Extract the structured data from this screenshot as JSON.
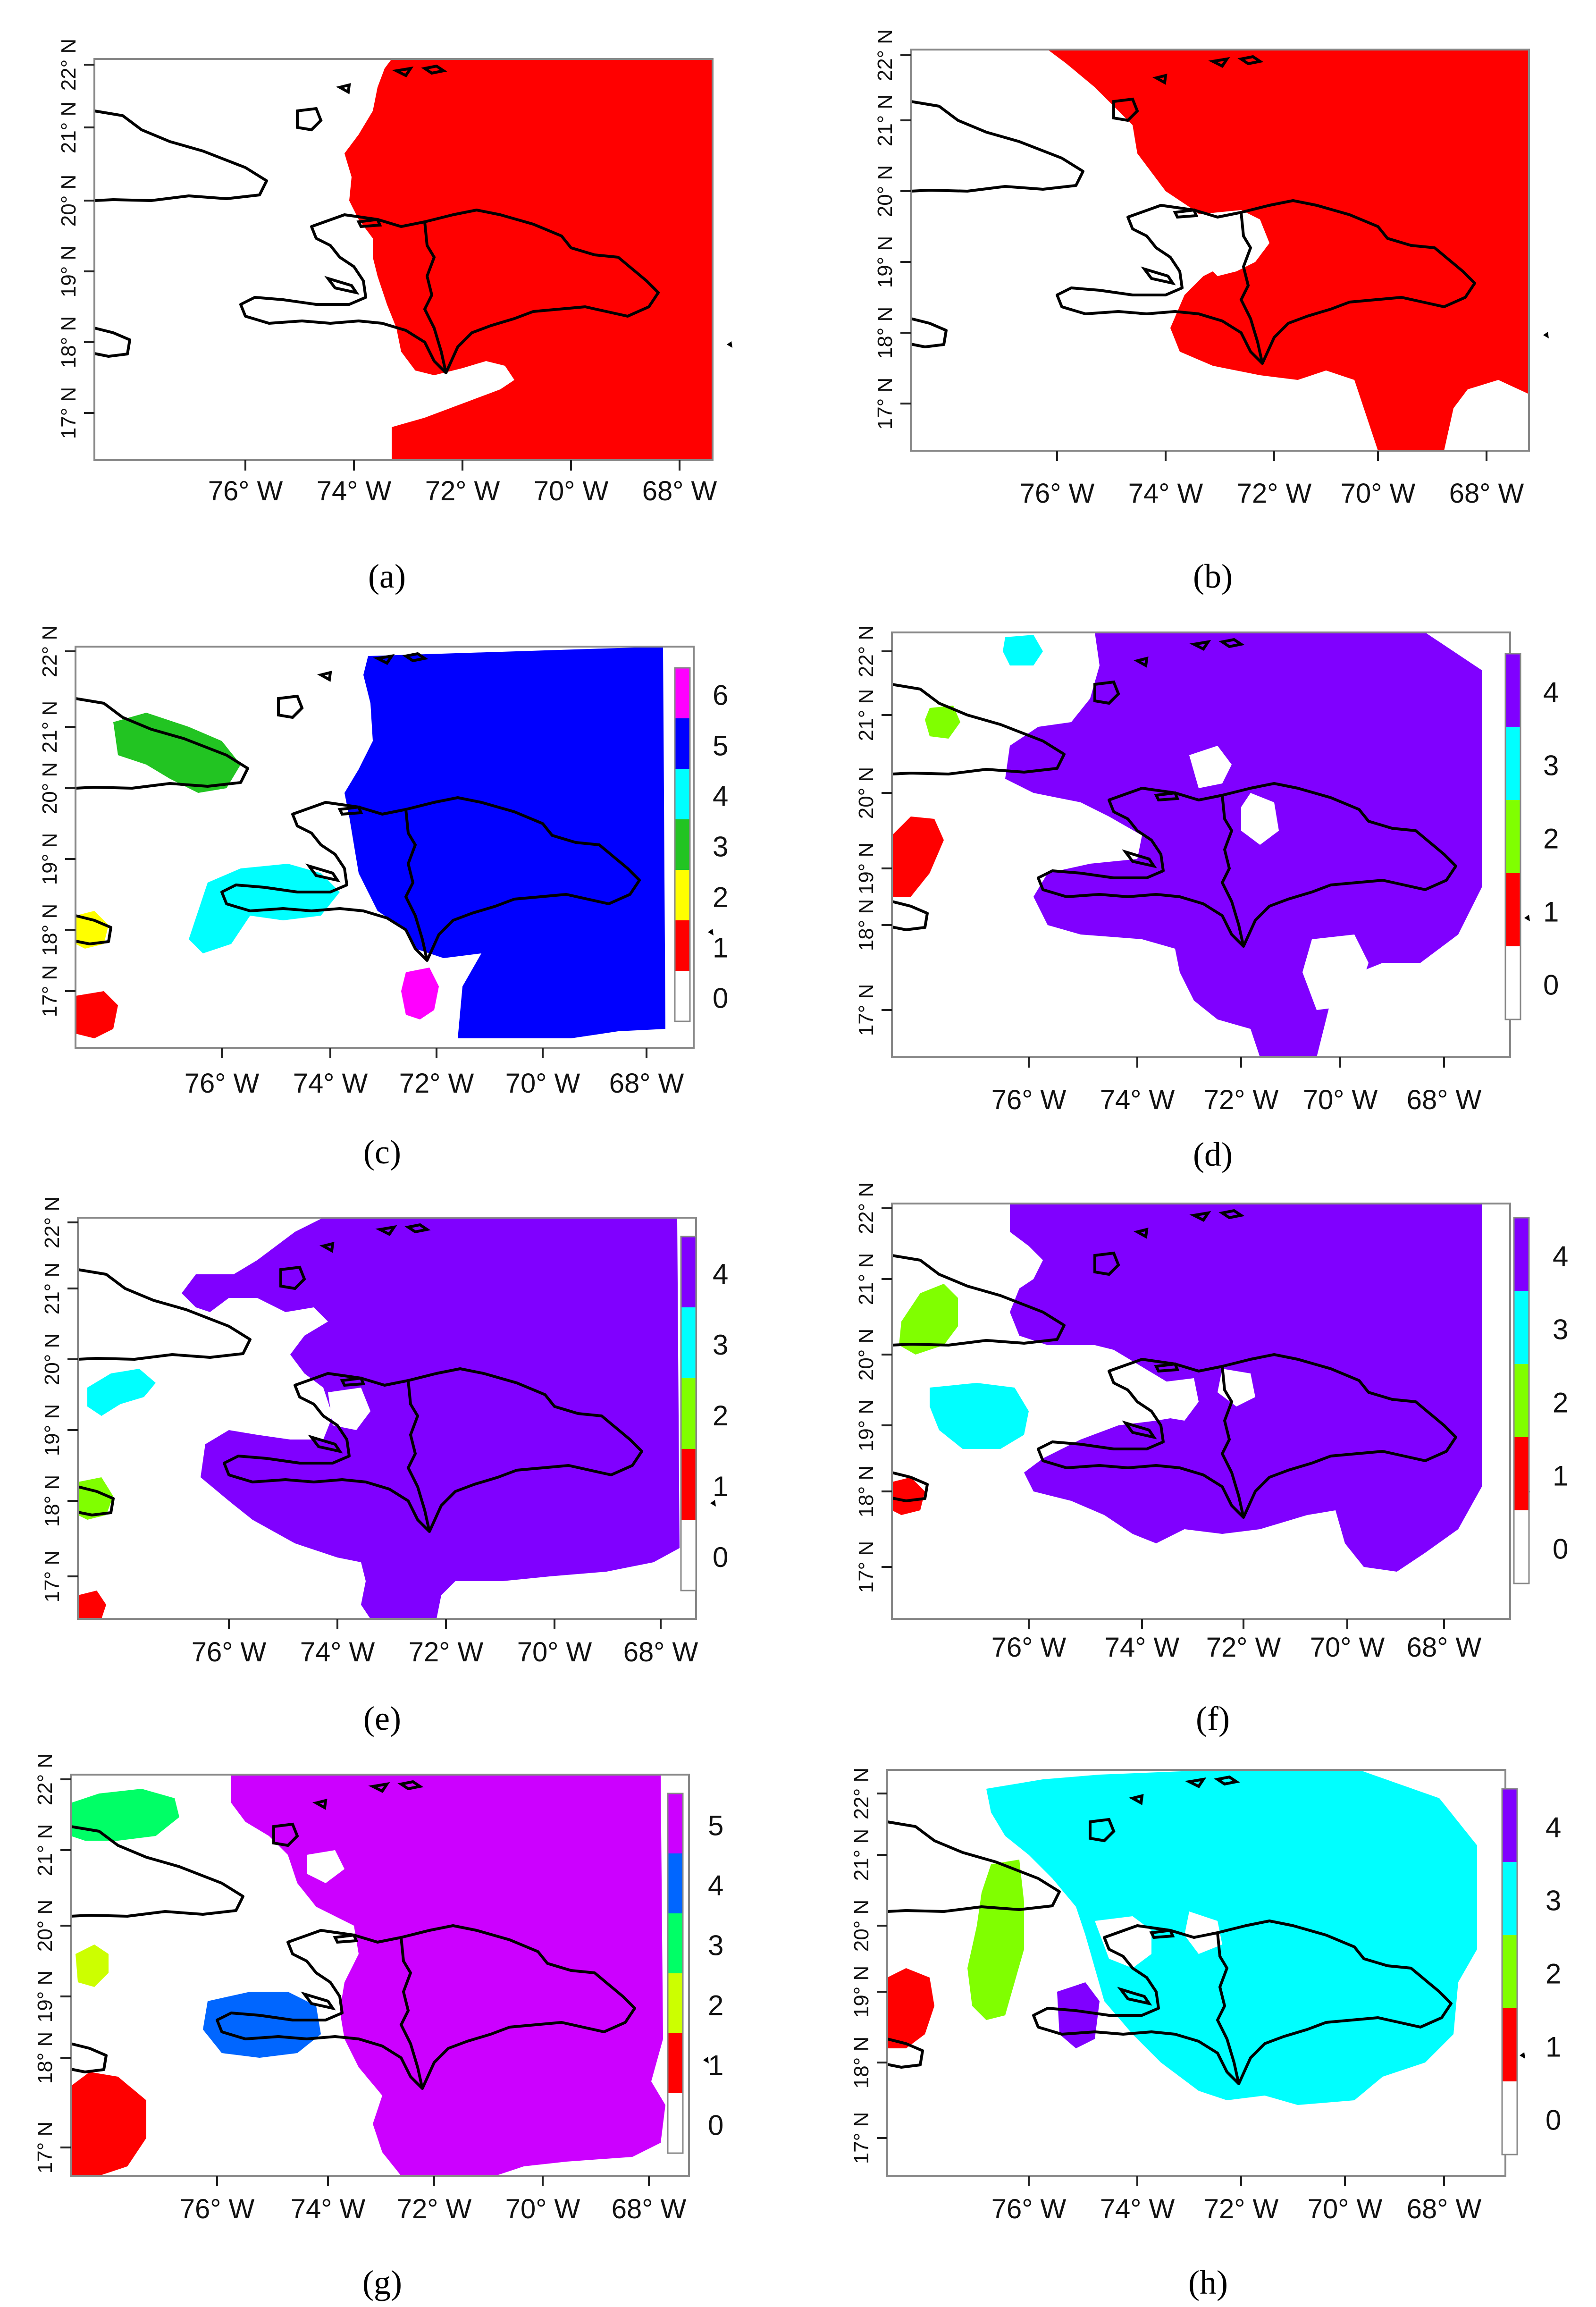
{
  "figure": {
    "panels": [
      {
        "id": "a",
        "caption": "(a)",
        "x_ticks": [
          "76° W",
          "74° W",
          "72° W",
          "70° W",
          "68° W"
        ],
        "y_ticks": [
          "22° N",
          "21° N",
          "20° N",
          "19° N",
          "18° N",
          "17° N"
        ],
        "map_type": "binary",
        "fill_color": "#ff0000",
        "legend": null
      },
      {
        "id": "b",
        "caption": "(b)",
        "x_ticks": [
          "76° W",
          "74° W",
          "72° W",
          "70° W",
          "68° W"
        ],
        "y_ticks": [
          "22° N",
          "21° N",
          "20° N",
          "19° N",
          "18° N",
          "17° N"
        ],
        "map_type": "binary",
        "fill_color": "#ff0000",
        "legend": null
      },
      {
        "id": "c",
        "caption": "(c)",
        "x_ticks": [
          "76° W",
          "74° W",
          "72° W",
          "70° W",
          "68° W"
        ],
        "y_ticks": [
          "22° N",
          "21° N",
          "20° N",
          "19° N",
          "18° N",
          "17° N"
        ],
        "map_type": "categorical",
        "legend": {
          "labels": [
            "0",
            "1",
            "2",
            "3",
            "4",
            "5",
            "6"
          ],
          "colors": [
            "#ffffff",
            "#ff0000",
            "#ffff00",
            "#22c422",
            "#00ffff",
            "#0000ff",
            "#ff00ff"
          ]
        },
        "regions": [
          {
            "class": 5,
            "color": "#0000ff"
          },
          {
            "class": 4,
            "color": "#00ffff"
          },
          {
            "class": 3,
            "color": "#22c422"
          },
          {
            "class": 2,
            "color": "#ffff00"
          },
          {
            "class": 1,
            "color": "#ff0000"
          },
          {
            "class": 6,
            "color": "#ff00ff"
          }
        ]
      },
      {
        "id": "d",
        "caption": "(d)",
        "x_ticks": [
          "76° W",
          "74° W",
          "72° W",
          "70° W",
          "68° W"
        ],
        "y_ticks": [
          "22° N",
          "21° N",
          "20° N",
          "19° N",
          "18° N",
          "17° N"
        ],
        "map_type": "categorical",
        "legend": {
          "labels": [
            "0",
            "1",
            "2",
            "3",
            "4"
          ],
          "colors": [
            "#ffffff",
            "#ff0000",
            "#80ff00",
            "#00ffff",
            "#8000ff"
          ]
        },
        "regions": [
          {
            "class": 4,
            "color": "#8000ff"
          },
          {
            "class": 3,
            "color": "#00ffff"
          },
          {
            "class": 2,
            "color": "#80ff00"
          },
          {
            "class": 1,
            "color": "#ff0000"
          }
        ]
      },
      {
        "id": "e",
        "caption": "(e)",
        "x_ticks": [
          "76° W",
          "74° W",
          "72° W",
          "70° W",
          "68° W"
        ],
        "y_ticks": [
          "22° N",
          "21° N",
          "20° N",
          "19° N",
          "18° N",
          "17° N"
        ],
        "map_type": "categorical",
        "legend": {
          "labels": [
            "0",
            "1",
            "2",
            "3",
            "4"
          ],
          "colors": [
            "#ffffff",
            "#ff0000",
            "#80ff00",
            "#00ffff",
            "#8000ff"
          ]
        },
        "regions": [
          {
            "class": 4,
            "color": "#8000ff"
          },
          {
            "class": 3,
            "color": "#00ffff"
          },
          {
            "class": 2,
            "color": "#80ff00"
          },
          {
            "class": 1,
            "color": "#ff0000"
          }
        ]
      },
      {
        "id": "f",
        "caption": "(f)",
        "x_ticks": [
          "76° W",
          "74° W",
          "72° W",
          "70° W",
          "68° W"
        ],
        "y_ticks": [
          "22° N",
          "21° N",
          "20° N",
          "19° N",
          "18° N",
          "17° N"
        ],
        "map_type": "categorical",
        "legend": {
          "labels": [
            "0",
            "1",
            "2",
            "3",
            "4"
          ],
          "colors": [
            "#ffffff",
            "#ff0000",
            "#80ff00",
            "#00ffff",
            "#8000ff"
          ]
        },
        "regions": [
          {
            "class": 4,
            "color": "#8000ff"
          },
          {
            "class": 3,
            "color": "#00ffff"
          },
          {
            "class": 2,
            "color": "#80ff00"
          },
          {
            "class": 1,
            "color": "#ff0000"
          }
        ]
      },
      {
        "id": "g",
        "caption": "(g)",
        "x_ticks": [
          "76° W",
          "74° W",
          "72° W",
          "70° W",
          "68° W"
        ],
        "y_ticks": [
          "22° N",
          "21° N",
          "20° N",
          "19° N",
          "18° N",
          "17° N"
        ],
        "map_type": "categorical",
        "legend": {
          "labels": [
            "0",
            "1",
            "2",
            "3",
            "4",
            "5"
          ],
          "colors": [
            "#ffffff",
            "#ff0000",
            "#ccff00",
            "#00ff66",
            "#0066ff",
            "#cc00ff"
          ]
        },
        "regions": [
          {
            "class": 5,
            "color": "#cc00ff"
          },
          {
            "class": 4,
            "color": "#0066ff"
          },
          {
            "class": 3,
            "color": "#00ff66"
          },
          {
            "class": 2,
            "color": "#ccff00"
          },
          {
            "class": 1,
            "color": "#ff0000"
          }
        ]
      },
      {
        "id": "h",
        "caption": "(h)",
        "x_ticks": [
          "76° W",
          "74° W",
          "72° W",
          "70° W",
          "68° W"
        ],
        "y_ticks": [
          "22° N",
          "21° N",
          "20° N",
          "19° N",
          "18° N",
          "17° N"
        ],
        "map_type": "categorical",
        "legend": {
          "labels": [
            "0",
            "1",
            "2",
            "3",
            "4"
          ],
          "colors": [
            "#ffffff",
            "#ff0000",
            "#80ff00",
            "#00ffff",
            "#8000ff"
          ]
        },
        "regions": [
          {
            "class": 3,
            "color": "#00ffff"
          },
          {
            "class": 2,
            "color": "#80ff00"
          },
          {
            "class": 1,
            "color": "#ff0000"
          },
          {
            "class": 4,
            "color": "#8000ff"
          }
        ]
      }
    ]
  }
}
